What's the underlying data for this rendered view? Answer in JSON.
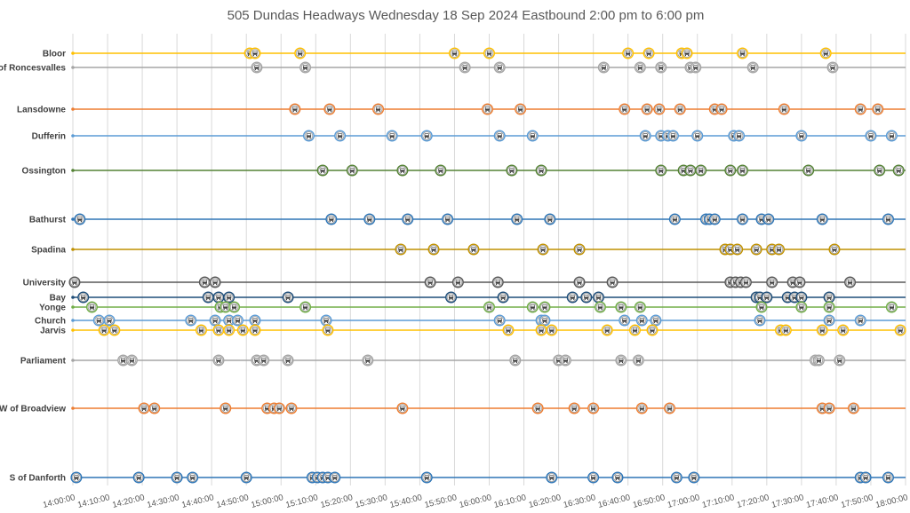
{
  "chart_data": {
    "type": "scatter",
    "title": "505 Dundas Headways Wednesday 18 Sep 2024 Eastbound 2:00 pm to 6:00 pm",
    "xlabel": "",
    "ylabel": "",
    "x_range": [
      "14:00:00",
      "18:00:00"
    ],
    "grid": "vertical",
    "legend": "none",
    "marker": "bus-icon",
    "ticks": [
      "14:00:00",
      "14:10:00",
      "14:20:00",
      "14:30:00",
      "14:40:00",
      "14:50:00",
      "15:00:00",
      "15:10:00",
      "15:20:00",
      "15:30:00",
      "15:40:00",
      "15:50:00",
      "16:00:00",
      "16:10:00",
      "16:20:00",
      "16:30:00",
      "16:40:00",
      "16:50:00",
      "17:00:00",
      "17:10:00",
      "17:20:00",
      "17:30:00",
      "17:40:00",
      "17:50:00",
      "18:00:00"
    ],
    "series": [
      {
        "name": "Bloor",
        "color": "#FFC000",
        "times": [
          "14:51:00",
          "14:52:30",
          "15:05:30",
          "15:50:00",
          "16:00:00",
          "16:40:00",
          "16:46:00",
          "16:55:30",
          "16:57:00",
          "17:13:00",
          "17:37:00"
        ]
      },
      {
        "name": "E of Roncesvalles",
        "color": "#A5A5A5",
        "times": [
          "14:53:00",
          "15:07:00",
          "15:53:00",
          "16:03:00",
          "16:33:00",
          "16:43:30",
          "16:49:30",
          "16:58:00",
          "16:59:30",
          "17:16:00",
          "17:39:00"
        ]
      },
      {
        "name": "Lansdowne",
        "color": "#ED7D31",
        "times": [
          "15:04:00",
          "15:14:00",
          "15:28:00",
          "15:59:30",
          "16:09:00",
          "16:39:00",
          "16:45:30",
          "16:49:00",
          "16:55:00",
          "17:05:00",
          "17:07:00",
          "17:25:00",
          "17:47:00",
          "17:52:00"
        ]
      },
      {
        "name": "Dufferin",
        "color": "#5B9BD5",
        "times": [
          "15:08:00",
          "15:17:00",
          "15:32:00",
          "15:42:00",
          "16:03:00",
          "16:12:30",
          "16:45:00",
          "16:49:30",
          "16:51:30",
          "16:53:00",
          "17:00:00",
          "17:10:30",
          "17:12:00",
          "17:30:00",
          "17:50:00",
          "17:56:00"
        ]
      },
      {
        "name": "Ossington",
        "color": "#548235",
        "times": [
          "15:12:00",
          "15:20:30",
          "15:35:00",
          "15:46:00",
          "16:06:30",
          "16:15:00",
          "16:49:30",
          "16:56:00",
          "16:58:00",
          "17:01:00",
          "17:09:30",
          "17:13:00",
          "17:32:00",
          "17:52:30",
          "17:58:00"
        ]
      },
      {
        "name": "Bathurst",
        "color": "#2E75B6",
        "times": [
          "14:02:00",
          "15:14:30",
          "15:25:30",
          "15:36:30",
          "15:48:00",
          "16:08:00",
          "16:17:30",
          "16:53:30",
          "17:02:30",
          "17:03:30",
          "17:05:00",
          "17:13:00",
          "17:18:30",
          "17:20:30",
          "17:36:00",
          "17:55:00"
        ]
      },
      {
        "name": "Spadina",
        "color": "#BF9000",
        "times": [
          "15:34:30",
          "15:44:00",
          "15:55:30",
          "16:15:30",
          "16:26:00",
          "17:08:00",
          "17:09:30",
          "17:11:30",
          "17:17:00",
          "17:21:30",
          "17:23:30",
          "17:39:30"
        ]
      },
      {
        "name": "University",
        "color": "#595959",
        "times": [
          "14:00:30",
          "14:38:00",
          "14:41:00",
          "15:43:00",
          "15:51:00",
          "16:02:30",
          "16:26:00",
          "16:35:30",
          "17:09:30",
          "17:11:00",
          "17:12:30",
          "17:14:00",
          "17:21:30",
          "17:27:30",
          "17:29:30",
          "17:44:00"
        ]
      },
      {
        "name": "Bay",
        "color": "#1F4E79",
        "times": [
          "14:03:00",
          "14:39:00",
          "14:42:00",
          "14:45:00",
          "15:02:00",
          "15:49:00",
          "16:04:00",
          "16:24:00",
          "16:28:00",
          "16:31:30",
          "17:17:00",
          "17:18:00",
          "17:20:00",
          "17:26:00",
          "17:28:00",
          "17:30:00",
          "17:38:00"
        ]
      },
      {
        "name": "Yonge",
        "color": "#70AD47",
        "times": [
          "14:05:30",
          "14:42:30",
          "14:44:00",
          "14:46:30",
          "15:07:00",
          "16:00:00",
          "16:12:30",
          "16:16:00",
          "16:32:00",
          "16:38:00",
          "16:43:30",
          "17:18:30",
          "17:30:00",
          "17:38:00",
          "17:56:00"
        ]
      },
      {
        "name": "Church",
        "color": "#5B9BD5",
        "times": [
          "14:07:30",
          "14:10:30",
          "14:34:00",
          "14:41:00",
          "14:45:00",
          "14:47:30",
          "14:52:30",
          "15:13:00",
          "16:03:00",
          "16:15:00",
          "16:16:00",
          "16:39:00",
          "16:44:00",
          "16:48:00",
          "17:18:00",
          "17:38:00",
          "17:47:00"
        ]
      },
      {
        "name": "Jarvis",
        "color": "#FFC000",
        "times": [
          "14:09:00",
          "14:12:00",
          "14:37:00",
          "14:42:00",
          "14:45:00",
          "14:49:00",
          "14:52:30",
          "15:13:30",
          "16:05:30",
          "16:15:00",
          "16:18:00",
          "16:34:00",
          "16:42:00",
          "16:47:00",
          "17:24:00",
          "17:25:30",
          "17:36:00",
          "17:42:00",
          "17:58:30"
        ]
      },
      {
        "name": "Parliament",
        "color": "#A5A5A5",
        "times": [
          "14:14:30",
          "14:17:00",
          "14:42:00",
          "14:53:00",
          "14:55:00",
          "15:02:00",
          "15:25:00",
          "16:07:30",
          "16:20:00",
          "16:22:00",
          "16:38:00",
          "16:43:00",
          "17:34:00",
          "17:35:00",
          "17:41:00"
        ]
      },
      {
        "name": "W of Broadview",
        "color": "#ED7D31",
        "times": [
          "14:20:30",
          "14:23:30",
          "14:44:00",
          "14:56:00",
          "14:58:00",
          "14:59:30",
          "15:03:00",
          "15:35:00",
          "16:14:00",
          "16:24:30",
          "16:30:00",
          "16:44:00",
          "16:52:00",
          "17:36:00",
          "17:38:00",
          "17:45:00"
        ]
      },
      {
        "name": "S of Danforth",
        "color": "#2E75B6",
        "times": [
          "14:01:00",
          "14:19:00",
          "14:30:00",
          "14:34:30",
          "14:50:00",
          "15:09:00",
          "15:10:30",
          "15:12:00",
          "15:13:30",
          "15:15:30",
          "15:42:00",
          "16:18:00",
          "16:30:00",
          "16:37:00",
          "16:54:00",
          "16:59:00",
          "17:47:00",
          "17:48:30",
          "17:55:00"
        ]
      }
    ]
  }
}
